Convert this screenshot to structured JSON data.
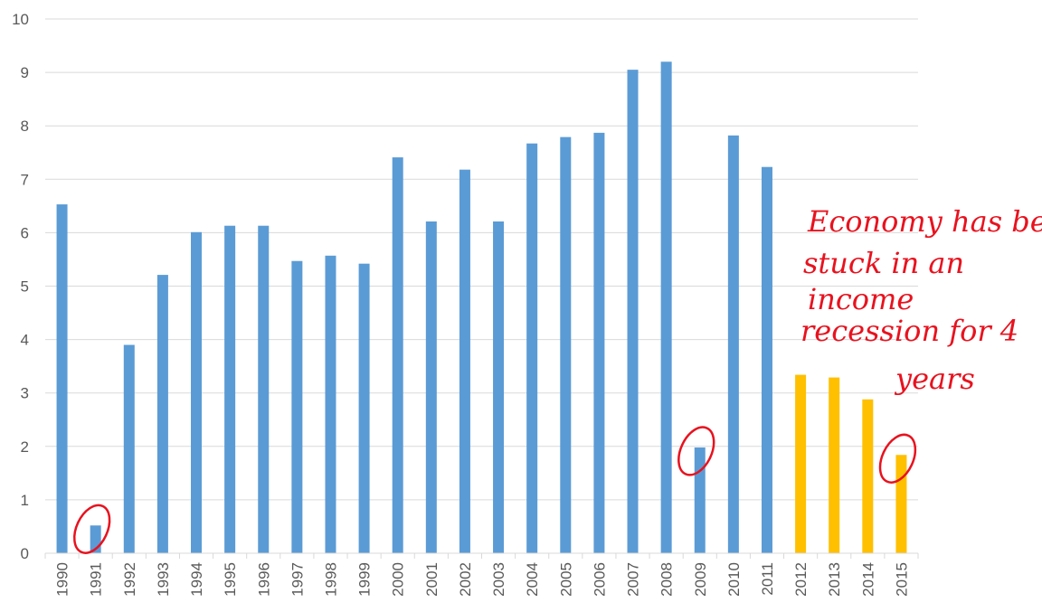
{
  "chart_data": {
    "type": "bar",
    "categories": [
      "1990",
      "1991",
      "1992",
      "1993",
      "1994",
      "1995",
      "1996",
      "1997",
      "1998",
      "1999",
      "2000",
      "2001",
      "2002",
      "2003",
      "2004",
      "2005",
      "2006",
      "2007",
      "2008",
      "2009",
      "2010",
      "2011",
      "2012",
      "2013",
      "2014",
      "2015"
    ],
    "values": [
      6.53,
      0.52,
      3.9,
      5.21,
      6.01,
      6.13,
      6.13,
      5.47,
      5.57,
      5.42,
      7.41,
      6.21,
      7.18,
      6.21,
      7.67,
      7.79,
      7.87,
      9.05,
      9.2,
      1.98,
      7.82,
      7.23,
      3.34,
      3.29,
      2.88,
      1.84
    ],
    "bar_colors": [
      "#5b9bd5",
      "#5b9bd5",
      "#5b9bd5",
      "#5b9bd5",
      "#5b9bd5",
      "#5b9bd5",
      "#5b9bd5",
      "#5b9bd5",
      "#5b9bd5",
      "#5b9bd5",
      "#5b9bd5",
      "#5b9bd5",
      "#5b9bd5",
      "#5b9bd5",
      "#5b9bd5",
      "#5b9bd5",
      "#5b9bd5",
      "#5b9bd5",
      "#5b9bd5",
      "#5b9bd5",
      "#5b9bd5",
      "#5b9bd5",
      "#ffc000",
      "#ffc000",
      "#ffc000",
      "#ffc000"
    ],
    "ylim": [
      0,
      10
    ],
    "yticks": [
      "0",
      "1",
      "2",
      "3",
      "4",
      "5",
      "6",
      "7",
      "8",
      "9",
      "10"
    ],
    "grid": true,
    "annotations": {
      "circled_categories": [
        "1991",
        "2009",
        "2015"
      ],
      "handwritten_note": [
        "Economy has been",
        "stuck in an",
        "income",
        "recession for 4",
        "years"
      ],
      "note_color": "#e8121e"
    }
  }
}
